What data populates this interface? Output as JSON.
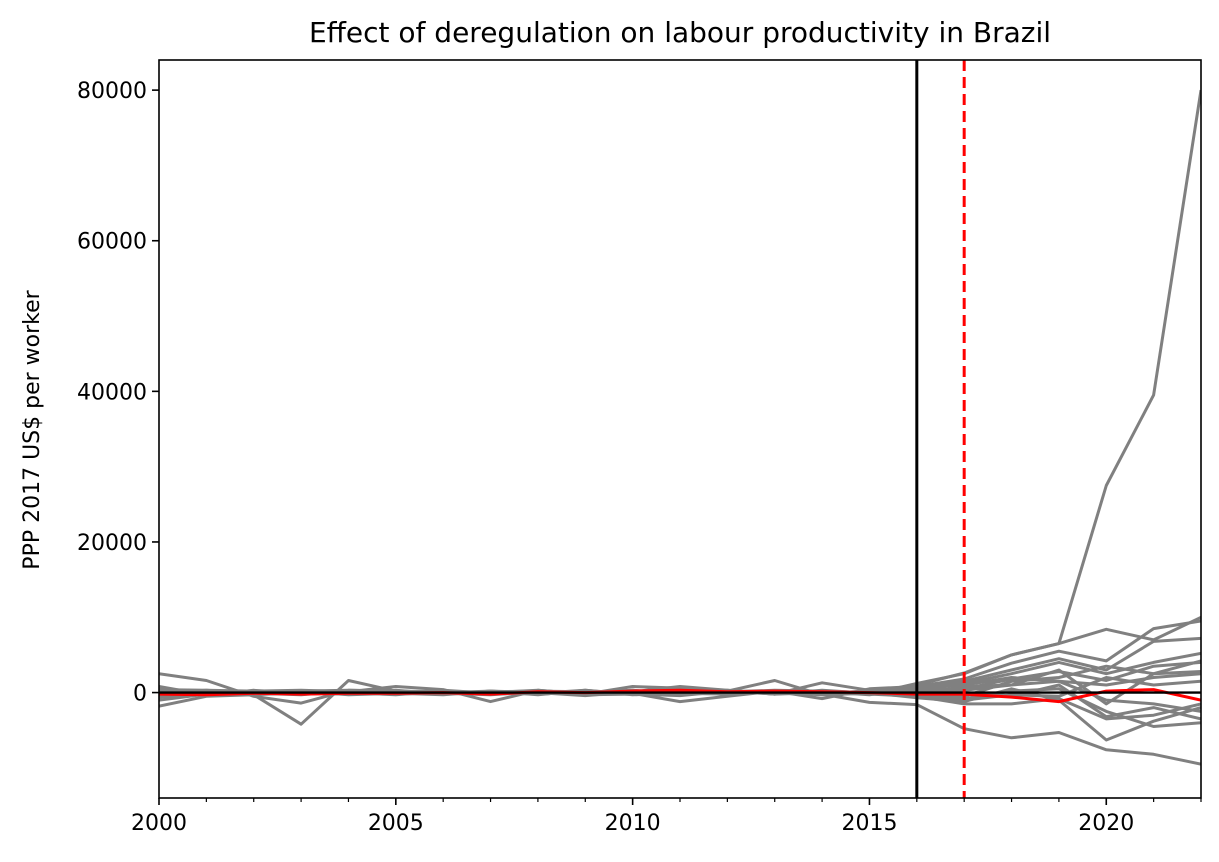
{
  "chart_data": {
    "type": "line",
    "title": "Effect of deregulation on labour productivity in Brazil",
    "xlabel": "",
    "ylabel": "PPP 2017 US$ per worker",
    "xlim": [
      2000,
      2022
    ],
    "ylim": [
      -14000,
      84000
    ],
    "x_ticks": [
      2000,
      2005,
      2010,
      2015,
      2020
    ],
    "y_ticks": [
      0,
      20000,
      40000,
      60000,
      80000
    ],
    "grid": false,
    "reference_lines": {
      "treatment_year": 2016,
      "deregulation_year": 2017,
      "zero_line": 0
    },
    "colors": {
      "placebo": "#808080",
      "treated": "#ff0000",
      "treatment_line": "#000000",
      "deregulation_line": "#ff0000"
    },
    "x": [
      2000,
      2001,
      2002,
      2003,
      2004,
      2005,
      2006,
      2007,
      2008,
      2009,
      2010,
      2011,
      2012,
      2013,
      2014,
      2015,
      2016,
      2017,
      2018,
      2019,
      2020,
      2021,
      2022
    ],
    "series": [
      {
        "role": "placebo",
        "values": [
          2500,
          1600,
          -500,
          -1400,
          300,
          200,
          100,
          -200,
          100,
          -300,
          -200,
          200,
          100,
          300,
          200,
          -200,
          1200,
          2500,
          5000,
          6500,
          27500,
          39500,
          80000
        ]
      },
      {
        "role": "placebo",
        "values": [
          -1800,
          -500,
          -300,
          -4200,
          1600,
          200,
          -100,
          0,
          200,
          0,
          300,
          -100,
          200,
          100,
          -200,
          -1300,
          -1600,
          -4800,
          -6000,
          -5300,
          -7600,
          -8200,
          -9500
        ]
      },
      {
        "role": "placebo",
        "values": [
          400,
          300,
          200,
          300,
          100,
          800,
          400,
          -1200,
          300,
          -200,
          800,
          600,
          200,
          1600,
          -300,
          -100,
          1000,
          2600,
          5000,
          6500,
          8400,
          7000,
          10000
        ]
      },
      {
        "role": "placebo",
        "values": [
          -600,
          -200,
          -100,
          200,
          300,
          200,
          0,
          100,
          200,
          100,
          -100,
          -1200,
          -500,
          200,
          -800,
          500,
          800,
          1800,
          3900,
          5500,
          4200,
          8500,
          9500
        ]
      },
      {
        "role": "placebo",
        "values": [
          200,
          -100,
          -300,
          0,
          -200,
          100,
          200,
          -200,
          0,
          -400,
          100,
          800,
          300,
          -200,
          1300,
          300,
          500,
          1500,
          3000,
          4500,
          3000,
          6800,
          7200
        ]
      },
      {
        "role": "placebo",
        "values": [
          -300,
          200,
          0,
          100,
          -100,
          300,
          -200,
          200,
          -300,
          300,
          -200,
          -400,
          200,
          0,
          -300,
          200,
          200,
          1200,
          2500,
          4000,
          2500,
          4000,
          5200
        ]
      },
      {
        "role": "placebo",
        "values": [
          800,
          -300,
          100,
          -200,
          200,
          -100,
          300,
          -100,
          200,
          -100,
          200,
          -100,
          -200,
          100,
          200,
          -100,
          -300,
          -500,
          1500,
          2000,
          3500,
          2500,
          4200
        ]
      },
      {
        "role": "placebo",
        "values": [
          -1000,
          -200,
          100,
          200,
          -300,
          -100,
          100,
          0,
          -200,
          100,
          -100,
          200,
          100,
          -100,
          -200,
          100,
          -200,
          800,
          1000,
          3000,
          -1500,
          2500,
          2800
        ]
      },
      {
        "role": "placebo",
        "values": [
          100,
          200,
          -200,
          -100,
          100,
          -200,
          0,
          200,
          -100,
          200,
          -200,
          100,
          -100,
          200,
          100,
          -200,
          -500,
          -1500,
          -1500,
          -800,
          -3500,
          -3000,
          -1500
        ]
      },
      {
        "role": "placebo",
        "values": [
          -200,
          -300,
          0,
          100,
          -100,
          200,
          -100,
          -300,
          100,
          -100,
          300,
          -200,
          100,
          -100,
          -100,
          200,
          0,
          -800,
          200,
          500,
          -2500,
          -4500,
          -4000
        ]
      },
      {
        "role": "placebo",
        "values": [
          300,
          100,
          -100,
          -300,
          200,
          0,
          -200,
          100,
          -100,
          200,
          -100,
          0,
          -100,
          200,
          -100,
          0,
          -700,
          -1200,
          500,
          -1000,
          -6300,
          -3800,
          -2000
        ]
      },
      {
        "role": "placebo",
        "values": [
          0,
          -100,
          200,
          100,
          0,
          -300,
          200,
          0,
          300,
          -200,
          100,
          -300,
          200,
          -200,
          300,
          -100,
          300,
          500,
          1800,
          2800,
          1600,
          3500,
          4000
        ]
      },
      {
        "role": "placebo",
        "values": [
          -500,
          100,
          -200,
          0,
          200,
          100,
          -100,
          -200,
          100,
          0,
          -100,
          100,
          0,
          -100,
          200,
          0,
          400,
          0,
          -500,
          1000,
          -3200,
          -2000,
          -3500
        ]
      },
      {
        "role": "placebo",
        "values": [
          600,
          -400,
          300,
          -100,
          -200,
          200,
          0,
          100,
          -200,
          100,
          200,
          -200,
          300,
          -200,
          0,
          100,
          100,
          300,
          1000,
          1500,
          1000,
          2000,
          2500
        ]
      },
      {
        "role": "placebo",
        "values": [
          -100,
          300,
          -100,
          200,
          100,
          -100,
          -300,
          200,
          0,
          -200,
          0,
          300,
          -200,
          100,
          -100,
          200,
          -300,
          -1000,
          -300,
          -500,
          2000,
          1000,
          1500
        ]
      },
      {
        "role": "placebo",
        "values": [
          200,
          0,
          100,
          -200,
          -100,
          0,
          100,
          -100,
          -100,
          300,
          -300,
          0,
          100,
          0,
          100,
          -300,
          600,
          1000,
          2000,
          1500,
          -1000,
          -1500,
          -2500
        ]
      },
      {
        "role": "treated",
        "values": [
          -200,
          -300,
          -100,
          -200,
          -100,
          -100,
          0,
          -200,
          100,
          0,
          200,
          300,
          100,
          200,
          100,
          0,
          -200,
          -200,
          -600,
          -1200,
          200,
          400,
          -1000
        ]
      }
    ]
  }
}
